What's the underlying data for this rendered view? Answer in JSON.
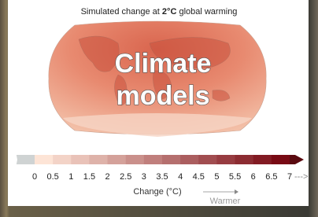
{
  "title": {
    "prefix": "Simulated change at ",
    "bold": "2°C",
    "suffix": " global warming"
  },
  "overlay": {
    "line1": "Climate",
    "line2": "models"
  },
  "colorbar": {
    "ticks": [
      0,
      0.5,
      1,
      1.5,
      2,
      2.5,
      3,
      3.5,
      4,
      4.5,
      5,
      5.5,
      6,
      6.5,
      7
    ],
    "more": "--->",
    "label": "Change (°C)",
    "direction": "Warmer"
  }
}
